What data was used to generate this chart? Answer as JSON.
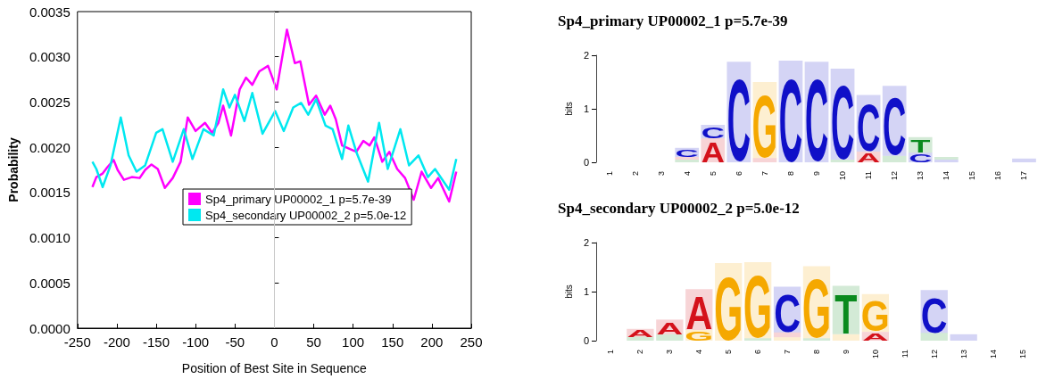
{
  "chart_data": [
    {
      "type": "line",
      "xlabel": "Position of Best Site in Sequence",
      "ylabel": "Probability",
      "xlim": [
        -250,
        250
      ],
      "xticks": [
        -250,
        -200,
        -150,
        -100,
        -50,
        0,
        50,
        100,
        150,
        200,
        250
      ],
      "ylim": [
        0,
        0.0035
      ],
      "yticks": [
        {
          "value": 0,
          "label": "0.0000"
        },
        {
          "value": 0.0005,
          "label": "0.0005"
        },
        {
          "value": 0.001,
          "label": "0.0010"
        },
        {
          "value": 0.0015,
          "label": "0.0015"
        },
        {
          "value": 0.002,
          "label": "0.0020"
        },
        {
          "value": 0.0025,
          "label": "0.0025"
        },
        {
          "value": 0.003,
          "label": "0.0030"
        },
        {
          "value": 0.0035,
          "label": "0.0035"
        }
      ],
      "grid": false,
      "legend": "center",
      "marker": "none",
      "line_style": "solid",
      "ref_lines": [
        {
          "axis": "x",
          "value": 0,
          "color": "#c8c8c8"
        }
      ],
      "series": [
        {
          "name": "Sp4_primary UP00002_1 p=5.7e-39",
          "color": "#ff00ff",
          "x": [
            -231,
            -226,
            -218,
            -212,
            -204,
            -199,
            -191,
            -181,
            -171,
            -164,
            -156,
            -148,
            -139,
            -129,
            -119,
            -110,
            -100,
            -88,
            -79,
            -71,
            -65,
            -55,
            -44,
            -36,
            -28,
            -19,
            -8,
            3,
            16,
            26,
            33,
            44,
            53,
            64,
            71,
            78,
            86,
            96,
            104,
            113,
            121,
            127,
            137,
            146,
            156,
            166,
            177,
            187,
            199,
            208,
            222,
            231
          ],
          "values": [
            0.00156,
            0.00167,
            0.00171,
            0.00178,
            0.00186,
            0.00175,
            0.00164,
            0.00167,
            0.00166,
            0.00175,
            0.00181,
            0.00176,
            0.00155,
            0.00166,
            0.00184,
            0.00233,
            0.00218,
            0.00227,
            0.00216,
            0.00227,
            0.00246,
            0.00213,
            0.00264,
            0.00277,
            0.00269,
            0.00284,
            0.0029,
            0.00264,
            0.0033,
            0.00293,
            0.00295,
            0.00247,
            0.00257,
            0.00236,
            0.00246,
            0.00231,
            0.00202,
            0.00198,
            0.00195,
            0.00207,
            0.00202,
            0.00211,
            0.00184,
            0.00195,
            0.00176,
            0.00166,
            0.00142,
            0.00173,
            0.00155,
            0.00166,
            0.0014,
            0.00173
          ]
        },
        {
          "name": "Sp4_secondary UP00002_2 p=5.0e-12",
          "color": "#00e8f0",
          "x": [
            -231,
            -226,
            -218,
            -208,
            -195,
            -185,
            -175,
            -164,
            -150,
            -142,
            -129,
            -115,
            -104,
            -90,
            -77,
            -65,
            -57,
            -50,
            -38,
            -28,
            -15,
            1,
            12,
            24,
            34,
            43,
            53,
            65,
            74,
            86,
            94,
            104,
            119,
            133,
            144,
            160,
            171,
            183,
            195,
            204,
            222,
            231
          ],
          "values": [
            0.00184,
            0.00176,
            0.00156,
            0.0018,
            0.00233,
            0.00191,
            0.00173,
            0.0018,
            0.00216,
            0.0022,
            0.00184,
            0.0022,
            0.00187,
            0.0022,
            0.00213,
            0.00264,
            0.00244,
            0.00258,
            0.00229,
            0.0026,
            0.00215,
            0.0024,
            0.00218,
            0.00244,
            0.00249,
            0.00236,
            0.00253,
            0.00224,
            0.0022,
            0.00187,
            0.00224,
            0.00195,
            0.00162,
            0.00227,
            0.00176,
            0.0022,
            0.0018,
            0.00191,
            0.00167,
            0.00176,
            0.00153,
            0.00187
          ]
        }
      ]
    },
    {
      "type": "bar",
      "stacked": true,
      "title": "Sp4_primary UP00002_1 p=5.7e-39",
      "ylabel": "bits",
      "categories": [
        "1",
        "2",
        "3",
        "4",
        "5",
        "6",
        "7",
        "8",
        "9",
        "10",
        "11",
        "12",
        "13",
        "14",
        "15",
        "16",
        "17"
      ],
      "ylim": [
        0,
        2
      ],
      "yticks": [
        0,
        1,
        2
      ],
      "series": [
        {
          "values": [
            null,
            null,
            null,
            0.05,
            0.45,
            1.88,
            0.08,
            1.9,
            1.88,
            0.05,
            0.2,
            0.12,
            0.18,
            0.05,
            null,
            null,
            0.07
          ],
          "value_labels": [
            null,
            null,
            null,
            null,
            "A",
            "C",
            null,
            "C",
            "C",
            null,
            "A",
            null,
            "C",
            null,
            null,
            null,
            null
          ],
          "colors": [
            "#d4121b",
            "#d4121b",
            "#d4121b",
            "#0a8a1e",
            "#d4121b",
            "#1010c8",
            "#d4121b",
            "#1010c8",
            "#1010c8",
            "#0a8a1e",
            "#d4121b",
            "#0a8a1e",
            "#1010c8",
            "#1010c8",
            "#d4121b",
            "#d4121b",
            "#1010c8"
          ]
        },
        {
          "values": [
            null,
            null,
            null,
            0.05,
            0.25,
            null,
            1.42,
            null,
            null,
            1.7,
            1.06,
            1.31,
            0.29,
            0.05,
            null,
            null,
            null
          ],
          "value_labels": [
            null,
            null,
            null,
            null,
            "C",
            null,
            "G",
            null,
            null,
            "C",
            "C",
            "C",
            "T",
            null,
            null,
            null,
            null
          ],
          "colors": [
            "#d4121b",
            "#d4121b",
            "#d4121b",
            "#d4121b",
            "#1010c8",
            "#1010c8",
            "#f5a800",
            "#1010c8",
            "#1010c8",
            "#1010c8",
            "#1010c8",
            "#1010c8",
            "#0a8a1e",
            "#0a8a1e",
            "#d4121b",
            "#d4121b",
            "#d4121b"
          ]
        },
        {
          "values": [
            null,
            null,
            null,
            0.17,
            null,
            null,
            null,
            null,
            null,
            null,
            null,
            null,
            null,
            null,
            null,
            null,
            null
          ],
          "value_labels": [
            null,
            null,
            null,
            "C",
            null,
            null,
            null,
            null,
            null,
            null,
            null,
            null,
            null,
            null,
            null,
            null,
            null
          ],
          "colors": [
            "#1010c8",
            "#1010c8",
            "#1010c8",
            "#1010c8",
            "#1010c8",
            "#1010c8",
            "#1010c8",
            "#1010c8",
            "#1010c8",
            "#1010c8",
            "#1010c8",
            "#1010c8",
            "#1010c8",
            "#1010c8",
            "#1010c8",
            "#1010c8",
            "#1010c8"
          ]
        }
      ]
    },
    {
      "type": "bar",
      "stacked": true,
      "title": "Sp4_secondary UP00002_2 p=5.0e-12",
      "ylabel": "bits",
      "categories": [
        "1",
        "2",
        "3",
        "4",
        "5",
        "6",
        "7",
        "8",
        "9",
        "10",
        "11",
        "12",
        "13",
        "14",
        "15"
      ],
      "ylim": [
        0,
        2
      ],
      "yticks": [
        0,
        1,
        2
      ],
      "series": [
        {
          "values": [
            null,
            0.08,
            0.13,
            0.22,
            1.58,
            0.05,
            0.07,
            0.05,
            0.13,
            0.18,
            null,
            0.16,
            0.13,
            null,
            null
          ],
          "value_labels": [
            null,
            null,
            null,
            "G",
            "G",
            null,
            null,
            null,
            null,
            "A",
            null,
            null,
            null,
            null,
            null
          ],
          "colors": [
            "#d4121b",
            "#0a8a1e",
            "#0a8a1e",
            "#f5a800",
            "#f5a800",
            "#0a8a1e",
            "#f5a800",
            "#0a8a1e",
            "#f5a800",
            "#d4121b",
            "#d4121b",
            "#0a8a1e",
            "#1010c8",
            "#d4121b",
            "#d4121b"
          ]
        },
        {
          "values": [
            null,
            0.16,
            0.3,
            0.83,
            null,
            1.55,
            0.1,
            1.47,
            0.99,
            0.77,
            null,
            0.87,
            null,
            null,
            null
          ],
          "value_labels": [
            null,
            "A",
            "A",
            "A",
            null,
            "G",
            null,
            "G",
            "T",
            "G",
            null,
            "C",
            null,
            null,
            null
          ],
          "colors": [
            "#d4121b",
            "#d4121b",
            "#d4121b",
            "#d4121b",
            "#f5a800",
            "#f5a800",
            "#d4121b",
            "#f5a800",
            "#0a8a1e",
            "#f5a800",
            "#d4121b",
            "#1010c8",
            "#d4121b",
            "#d4121b",
            "#d4121b"
          ]
        },
        {
          "values": [
            null,
            null,
            null,
            null,
            null,
            null,
            0.93,
            null,
            null,
            null,
            null,
            null,
            null,
            null,
            null
          ],
          "value_labels": [
            null,
            null,
            null,
            null,
            null,
            null,
            "C",
            null,
            null,
            null,
            null,
            null,
            null,
            null,
            null
          ],
          "colors": [
            "#1010c8",
            "#1010c8",
            "#1010c8",
            "#1010c8",
            "#1010c8",
            "#1010c8",
            "#1010c8",
            "#1010c8",
            "#1010c8",
            "#1010c8",
            "#1010c8",
            "#1010c8",
            "#1010c8",
            "#1010c8",
            "#1010c8"
          ]
        }
      ]
    }
  ]
}
